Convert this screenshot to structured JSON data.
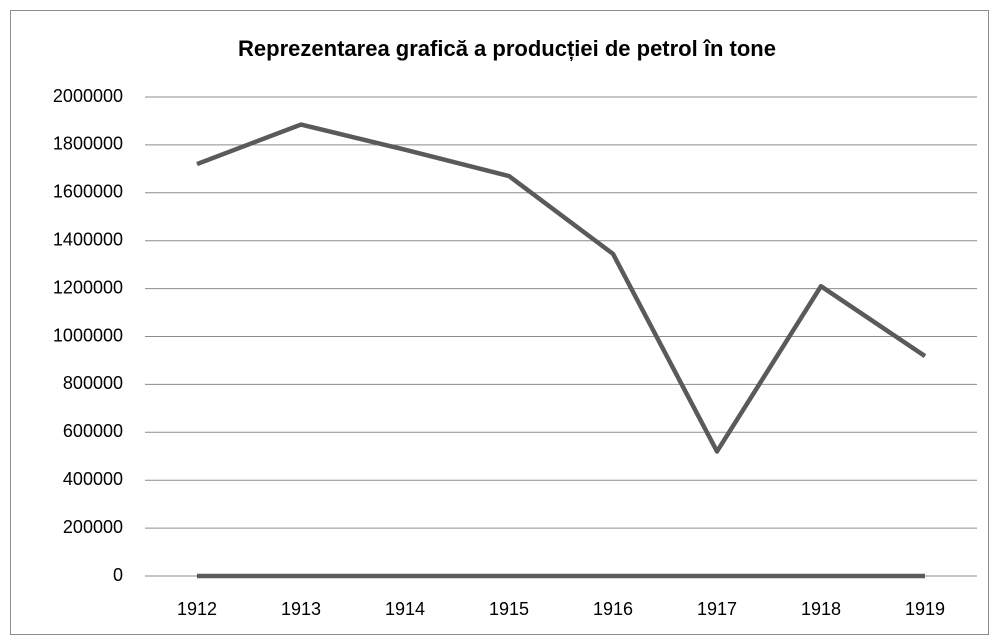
{
  "chart_data": {
    "type": "line",
    "title": "Reprezentarea grafică a producției de petrol în tone",
    "categories": [
      "1912",
      "1913",
      "1914",
      "1915",
      "1916",
      "1917",
      "1918",
      "1919"
    ],
    "series": [
      {
        "color": "#5a5a5a",
        "values": [
          1720000,
          1885000,
          1780000,
          1670000,
          1345000,
          520000,
          1210000,
          918000
        ]
      },
      {
        "color": "#5a5a5a",
        "values": [
          0,
          0,
          0,
          0,
          0,
          0,
          0,
          0
        ]
      }
    ],
    "ylim": [
      0,
      2000000
    ],
    "yticks": [
      0,
      200000,
      400000,
      600000,
      800000,
      1000000,
      1200000,
      1400000,
      1600000,
      1800000,
      2000000
    ],
    "grid": true
  }
}
